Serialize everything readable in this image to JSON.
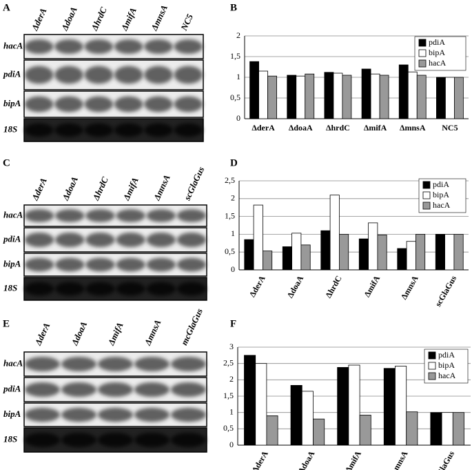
{
  "panel_labels": [
    "A",
    "B",
    "C",
    "D",
    "E",
    "F"
  ],
  "blots": [
    {
      "lanes": [
        "ΔderA",
        "ΔdoaA",
        "ΔhrdC",
        "ΔmifA",
        "ΔmnsA",
        "NC5"
      ],
      "rows": [
        "hacA",
        "pdiA",
        "bipA",
        "18S"
      ]
    },
    {
      "lanes": [
        "ΔderA",
        "ΔdoaA",
        "ΔhrdC",
        "ΔmifA",
        "ΔmnsA",
        "scGlaGus"
      ],
      "rows": [
        "hacA",
        "pdiA",
        "bipA",
        "18S"
      ]
    },
    {
      "lanes": [
        "ΔderA",
        "ΔdoaA",
        "ΔmifA",
        "ΔmnsA",
        "mcGlaGus"
      ],
      "rows": [
        "hacA",
        "pdiA",
        "bipA",
        "18S"
      ]
    }
  ],
  "chart_data": [
    {
      "type": "bar",
      "categories": [
        "ΔderA",
        "ΔdoaA",
        "ΔhrdC",
        "ΔmifA",
        "ΔmnsA",
        "NC5"
      ],
      "series": [
        {
          "name": "pdiA",
          "color": "#000000",
          "values": [
            1.38,
            1.05,
            1.12,
            1.2,
            1.3,
            1
          ]
        },
        {
          "name": "bipA",
          "color": "#ffffff",
          "values": [
            1.15,
            1.03,
            1.1,
            1.08,
            1.13,
            1
          ]
        },
        {
          "name": "hacA",
          "color": "#999999",
          "values": [
            1.03,
            1.08,
            1.05,
            1.05,
            1.05,
            1
          ]
        }
      ],
      "ylim": [
        0,
        2
      ],
      "yticks": [
        0,
        {
          "value": 0.5,
          "label": "0,5"
        },
        1,
        {
          "value": 1.5,
          "label": "1,5"
        },
        2
      ],
      "grid": true,
      "legend": "upper right"
    },
    {
      "type": "bar",
      "categories": [
        "ΔderA",
        "ΔdoaA",
        "ΔhrdC",
        "ΔmifA",
        "ΔmnsA",
        "scGlaGus"
      ],
      "series": [
        {
          "name": "pdiA",
          "color": "#000000",
          "values": [
            0.85,
            0.65,
            1.1,
            0.87,
            0.6,
            1
          ]
        },
        {
          "name": "bipA",
          "color": "#ffffff",
          "values": [
            1.82,
            1.03,
            2.1,
            1.32,
            0.8,
            1
          ]
        },
        {
          "name": "hacA",
          "color": "#999999",
          "values": [
            0.53,
            0.7,
            1.0,
            0.98,
            1.0,
            1
          ]
        }
      ],
      "ylim": [
        0,
        2.5
      ],
      "yticks": [
        0,
        {
          "value": 0.5,
          "label": "0,5"
        },
        1,
        {
          "value": 1.5,
          "label": "1,5"
        },
        2,
        {
          "value": 2.5,
          "label": "2,5"
        }
      ],
      "grid": true,
      "legend": "upper right"
    },
    {
      "type": "bar",
      "categories": [
        "ΔderA",
        "ΔdoaA",
        "ΔmifA",
        "ΔmnsA",
        "mcGlaGus"
      ],
      "series": [
        {
          "name": "pdiA",
          "color": "#000000",
          "values": [
            2.75,
            1.83,
            2.38,
            2.35,
            1
          ]
        },
        {
          "name": "bipA",
          "color": "#ffffff",
          "values": [
            2.5,
            1.65,
            2.45,
            2.42,
            1
          ]
        },
        {
          "name": "hacA",
          "color": "#999999",
          "values": [
            0.9,
            0.8,
            0.92,
            1.02,
            1
          ]
        }
      ],
      "ylim": [
        0,
        3
      ],
      "yticks": [
        0,
        {
          "value": 0.5,
          "label": "0,5"
        },
        1,
        {
          "value": 1.5,
          "label": "1,5"
        },
        2,
        {
          "value": 2.5,
          "label": "2,5"
        },
        3
      ],
      "grid": true,
      "legend": "upper right"
    }
  ]
}
